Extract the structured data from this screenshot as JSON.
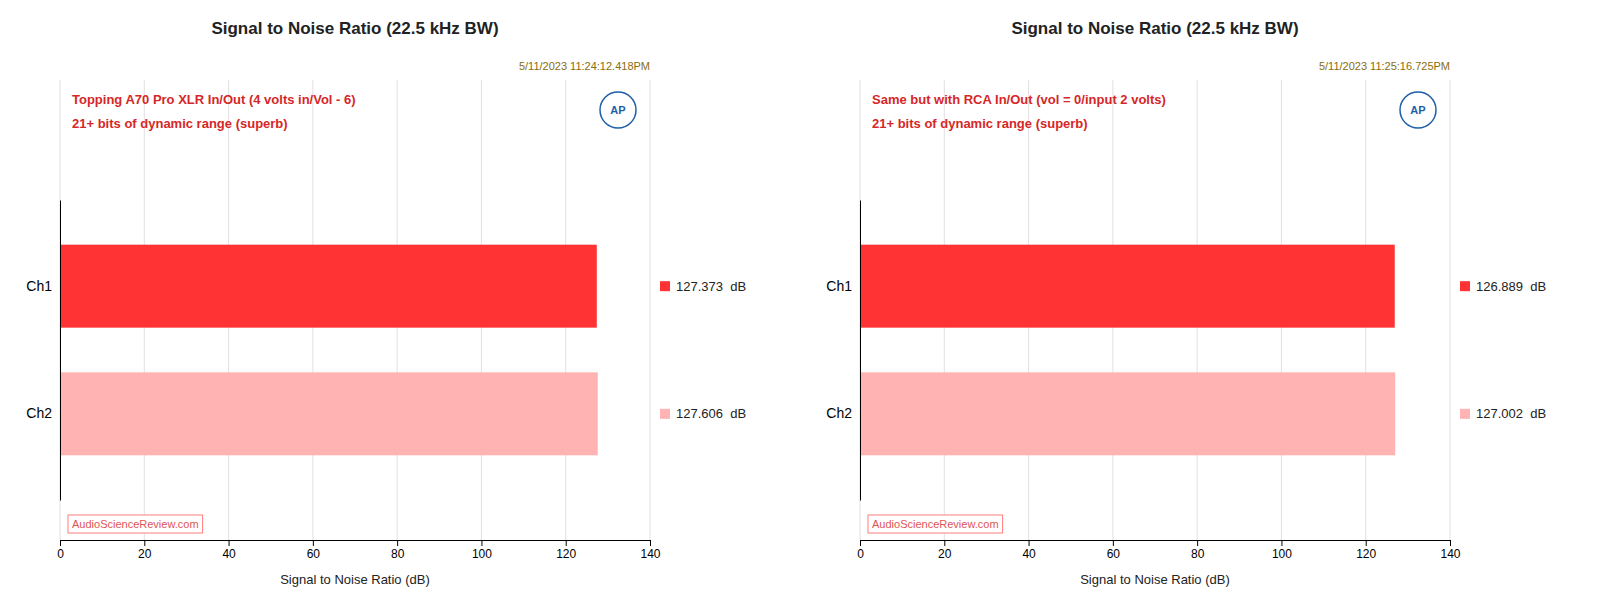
{
  "chart_data": [
    {
      "type": "bar",
      "orientation": "horizontal",
      "title": "Signal to Noise Ratio (22.5 kHz BW)",
      "annotations": [
        "5/11/2023 11:24:12.418PM",
        "Topping A70 Pro XLR In/Out (4 volts in/Vol - 6)",
        "21+ bits of dynamic range (superb)",
        "AudioScienceReview.com",
        "AP"
      ],
      "categories": [
        "Ch1",
        "Ch2"
      ],
      "values": [
        127.373,
        127.606
      ],
      "value_labels": [
        "127.373  dB",
        "127.606  dB"
      ],
      "colors": [
        "#FF3333",
        "#FFB3B3"
      ],
      "xlabel": "Signal to Noise Ratio (dB)",
      "xlim": [
        0,
        140
      ],
      "xticks": [
        0,
        20,
        40,
        60,
        80,
        100,
        120,
        140
      ],
      "grid": true,
      "data_labels": true
    },
    {
      "type": "bar",
      "orientation": "horizontal",
      "title": "Signal to Noise Ratio (22.5 kHz BW)",
      "annotations": [
        "5/11/2023 11:25:16.725PM",
        "Same but with RCA In/Out (vol = 0/input 2 volts)",
        "21+ bits of dynamic range (superb)",
        "AudioScienceReview.com",
        "AP"
      ],
      "categories": [
        "Ch1",
        "Ch2"
      ],
      "values": [
        126.889,
        127.002
      ],
      "value_labels": [
        "126.889  dB",
        "127.002  dB"
      ],
      "colors": [
        "#FF3333",
        "#FFB3B3"
      ],
      "xlabel": "Signal to Noise Ratio (dB)",
      "xlim": [
        0,
        140
      ],
      "xticks": [
        0,
        20,
        40,
        60,
        80,
        100,
        120,
        140
      ],
      "grid": true,
      "data_labels": true
    }
  ]
}
